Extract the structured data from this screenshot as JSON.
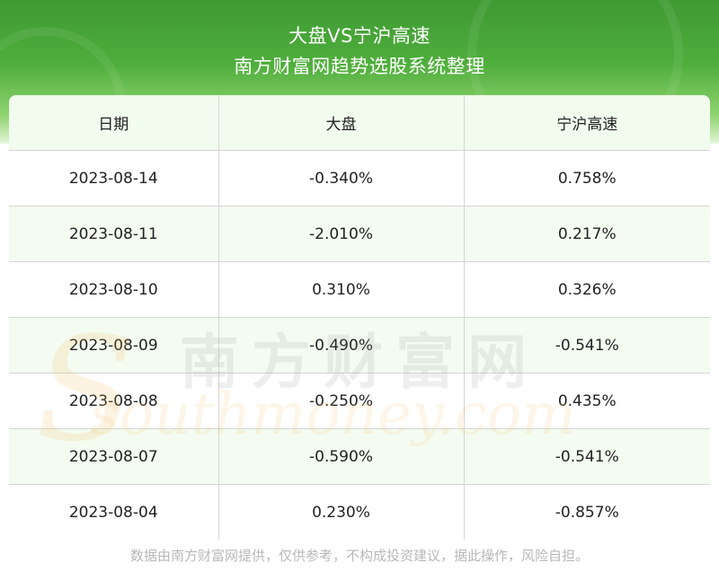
{
  "header": {
    "title_line1": "大盘VS宁沪高速",
    "title_line2": "南方财富网趋势选股系统整理"
  },
  "table": {
    "columns": [
      "日期",
      "大盘",
      "宁沪高速"
    ],
    "rows": [
      [
        "2023-08-14",
        "-0.340%",
        "0.758%"
      ],
      [
        "2023-08-11",
        "-2.010%",
        "0.217%"
      ],
      [
        "2023-08-10",
        "0.310%",
        "0.326%"
      ],
      [
        "2023-08-09",
        "-0.490%",
        "-0.541%"
      ],
      [
        "2023-08-08",
        "-0.250%",
        "0.435%"
      ],
      [
        "2023-08-07",
        "-0.590%",
        "-0.541%"
      ],
      [
        "2023-08-04",
        "0.230%",
        "-0.857%"
      ]
    ]
  },
  "watermark": {
    "cn": "南方财富网",
    "en": "southmoney.com",
    "s": "S"
  },
  "footer": "数据由南方财富网提供，仅供参考，不构成投资建议，据此操作，风险自担。",
  "colors": {
    "header_green": "#4fae3c",
    "header_row_bg": "#f1fbee",
    "alt_row_bg": "#f4fcf1",
    "footer_text": "#b8b8b8"
  }
}
